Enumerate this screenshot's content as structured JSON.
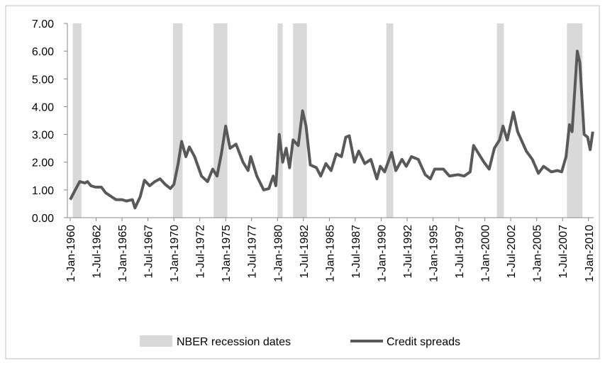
{
  "chart_data": {
    "type": "line",
    "ylim": [
      0,
      7
    ],
    "yticks": [
      {
        "value": 0,
        "label": "0.00"
      },
      {
        "value": 1,
        "label": "1.00"
      },
      {
        "value": 2,
        "label": "2.00"
      },
      {
        "value": 3,
        "label": "3.00"
      },
      {
        "value": 4,
        "label": "4.00"
      },
      {
        "value": 5,
        "label": "5.00"
      },
      {
        "value": 6,
        "label": "6.00"
      },
      {
        "value": 7,
        "label": "7.00"
      }
    ],
    "xlim": [
      "1960-01-01",
      "2010-07-01"
    ],
    "xticks": [
      {
        "value": "1960-01-01",
        "label": "1-Jan-1960"
      },
      {
        "value": "1962-07-01",
        "label": "1-Jul-1962"
      },
      {
        "value": "1965-01-01",
        "label": "1-Jan-1965"
      },
      {
        "value": "1967-07-01",
        "label": "1-Jul-1967"
      },
      {
        "value": "1970-01-01",
        "label": "1-Jan-1970"
      },
      {
        "value": "1972-07-01",
        "label": "1-Jul-1972"
      },
      {
        "value": "1975-01-01",
        "label": "1-Jan-1975"
      },
      {
        "value": "1977-07-01",
        "label": "1-Jul-1977"
      },
      {
        "value": "1980-01-01",
        "label": "1-Jan-1980"
      },
      {
        "value": "1982-07-01",
        "label": "1-Jul-1982"
      },
      {
        "value": "1985-01-01",
        "label": "1-Jan-1985"
      },
      {
        "value": "1987-07-01",
        "label": "1-Jul-1987"
      },
      {
        "value": "1990-01-01",
        "label": "1-Jan-1990"
      },
      {
        "value": "1992-07-01",
        "label": "1-Jul-1992"
      },
      {
        "value": "1995-01-01",
        "label": "1-Jan-1995"
      },
      {
        "value": "1997-07-01",
        "label": "1-Jul-1997"
      },
      {
        "value": "2000-01-01",
        "label": "1-Jan-2000"
      },
      {
        "value": "2002-07-01",
        "label": "1-Jul-2002"
      },
      {
        "value": "2005-01-01",
        "label": "1-Jan-2005"
      },
      {
        "value": "2007-07-01",
        "label": "1-Jul-2007"
      },
      {
        "value": "2010-01-01",
        "label": "1-Jan-2010"
      }
    ],
    "recessions": {
      "name": "NBER recession dates",
      "color": "#d9d9d9",
      "periods": [
        [
          "1960-04-01",
          "1961-02-01"
        ],
        [
          "1969-12-01",
          "1970-11-01"
        ],
        [
          "1973-11-01",
          "1975-03-01"
        ],
        [
          "1980-01-01",
          "1980-07-01"
        ],
        [
          "1981-07-01",
          "1982-11-01"
        ],
        [
          "1990-07-01",
          "1991-03-01"
        ],
        [
          "2001-03-01",
          "2001-11-01"
        ],
        [
          "2007-12-01",
          "2009-06-01"
        ]
      ]
    },
    "x": [
      "1960-01-01",
      "1960-06-01",
      "1960-12-01",
      "1961-06-01",
      "1961-09-01",
      "1962-01-01",
      "1962-06-01",
      "1963-01-01",
      "1963-06-01",
      "1964-01-01",
      "1964-06-01",
      "1965-01-01",
      "1965-06-01",
      "1966-01-01",
      "1966-04-01",
      "1966-10-01",
      "1967-03-01",
      "1967-09-01",
      "1968-03-01",
      "1968-09-01",
      "1969-03-01",
      "1969-09-01",
      "1970-01-01",
      "1970-06-01",
      "1970-10-01",
      "1971-03-01",
      "1971-07-01",
      "1972-01-01",
      "1972-09-01",
      "1973-04-01",
      "1973-10-01",
      "1974-03-01",
      "1974-08-01",
      "1975-01-01",
      "1975-06-01",
      "1976-01-01",
      "1976-09-01",
      "1977-03-01",
      "1977-06-01",
      "1978-01-01",
      "1978-09-01",
      "1979-03-01",
      "1979-08-01",
      "1979-11-01",
      "1980-03-01",
      "1980-07-01",
      "1980-11-01",
      "1981-03-01",
      "1981-07-01",
      "1982-01-01",
      "1982-06-01",
      "1982-10-01",
      "1983-03-01",
      "1983-10-01",
      "1984-03-01",
      "1984-09-01",
      "1985-03-01",
      "1985-09-01",
      "1986-03-01",
      "1986-08-01",
      "1986-12-01",
      "1987-06-01",
      "1987-11-01",
      "1988-06-01",
      "1989-01-01",
      "1989-08-01",
      "1989-12-01",
      "1990-05-01",
      "1991-01-01",
      "1991-06-01",
      "1992-01-01",
      "1992-06-01",
      "1992-12-01",
      "1993-08-01",
      "1994-04-01",
      "1994-10-01",
      "1995-03-01",
      "1996-01-01",
      "1996-08-01",
      "1997-06-01",
      "1998-01-01",
      "1998-08-01",
      "1998-12-01",
      "1999-06-01",
      "1999-12-01",
      "2000-06-01",
      "2000-12-01",
      "2001-06-01",
      "2001-10-01",
      "2002-03-01",
      "2002-10-01",
      "2003-03-01",
      "2004-01-01",
      "2004-08-01",
      "2005-03-01",
      "2005-09-01",
      "2006-06-01",
      "2007-01-01",
      "2007-06-01",
      "2007-11-01",
      "2008-03-01",
      "2008-06-01",
      "2008-12-01",
      "2009-03-01",
      "2009-08-01",
      "2009-12-01",
      "2010-03-01",
      "2010-06-01"
    ],
    "series": [
      {
        "name": "Credit spreads",
        "color": "#595959",
        "values": [
          0.65,
          0.95,
          1.3,
          1.25,
          1.3,
          1.15,
          1.1,
          1.1,
          0.9,
          0.75,
          0.65,
          0.65,
          0.6,
          0.65,
          0.35,
          0.75,
          1.35,
          1.15,
          1.3,
          1.4,
          1.2,
          1.05,
          1.2,
          1.95,
          2.75,
          2.2,
          2.55,
          2.2,
          1.5,
          1.3,
          1.75,
          1.5,
          2.3,
          3.3,
          2.5,
          2.65,
          2.0,
          1.7,
          2.2,
          1.5,
          1.0,
          1.05,
          1.5,
          1.15,
          3.0,
          2.0,
          2.5,
          1.8,
          2.8,
          2.6,
          3.85,
          3.3,
          1.9,
          1.8,
          1.5,
          1.95,
          1.7,
          2.3,
          2.2,
          2.9,
          2.95,
          2.0,
          2.4,
          1.95,
          2.1,
          1.4,
          1.85,
          1.65,
          2.35,
          1.7,
          2.1,
          1.85,
          2.2,
          2.1,
          1.55,
          1.4,
          1.75,
          1.75,
          1.5,
          1.55,
          1.5,
          1.65,
          2.6,
          2.3,
          2.0,
          1.75,
          2.5,
          2.8,
          3.3,
          2.8,
          3.8,
          3.1,
          2.4,
          2.1,
          1.6,
          1.85,
          1.65,
          1.7,
          1.65,
          2.2,
          3.35,
          3.1,
          6.0,
          5.6,
          3.0,
          2.9,
          2.45,
          3.1
        ]
      }
    ],
    "legend": "bottom"
  }
}
